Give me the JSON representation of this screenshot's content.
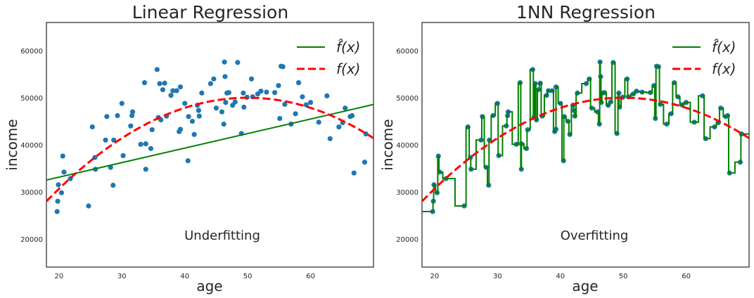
{
  "chart_data": [
    {
      "type": "scatter",
      "title": "Linear Regression",
      "xlabel": "age",
      "ylabel": "income",
      "xlim": [
        18,
        70
      ],
      "ylim": [
        14000,
        66000
      ],
      "xticks": [
        20,
        30,
        40,
        50,
        60
      ],
      "yticks": [
        20000,
        30000,
        40000,
        50000,
        60000
      ],
      "annotation": "Underfitting",
      "legend_placement": "top-right",
      "legend": [
        {
          "label": "f̂(x)",
          "color": "#008000",
          "style": "solid"
        },
        {
          "label": "f(x)",
          "color": "#ff0000",
          "style": "dashed"
        }
      ],
      "fit": {
        "kind": "linear",
        "intercept": 32500,
        "slope": 309
      },
      "true_function": {
        "kind": "quadratic",
        "peak_x": 50,
        "peak_y": 50000,
        "curvature": -21.5
      },
      "grid": false
    },
    {
      "type": "scatter",
      "title": "1NN Regression",
      "xlabel": "age",
      "ylabel": "income",
      "xlim": [
        18,
        70
      ],
      "ylim": [
        14000,
        66000
      ],
      "xticks": [
        20,
        30,
        40,
        50,
        60
      ],
      "yticks": [
        20000,
        30000,
        40000,
        50000,
        60000
      ],
      "annotation": "Overfitting",
      "legend_placement": "top-right",
      "legend": [
        {
          "label": "f̂(x)",
          "color": "#008000",
          "style": "solid"
        },
        {
          "label": "f(x)",
          "color": "#ff0000",
          "style": "dashed"
        }
      ],
      "fit": {
        "kind": "nearest-neighbor-step"
      },
      "true_function": {
        "kind": "quadratic",
        "peak_x": 50,
        "peak_y": 50000,
        "curvature": -21.5
      },
      "grid": false
    }
  ],
  "points": [
    {
      "x": 19.7,
      "y": 25800
    },
    {
      "x": 19.8,
      "y": 28000
    },
    {
      "x": 19.9,
      "y": 31500
    },
    {
      "x": 20.4,
      "y": 29800
    },
    {
      "x": 20.6,
      "y": 37600
    },
    {
      "x": 20.8,
      "y": 34200
    },
    {
      "x": 21.8,
      "y": 32800
    },
    {
      "x": 24.7,
      "y": 27000
    },
    {
      "x": 25.3,
      "y": 43800
    },
    {
      "x": 25.7,
      "y": 37300
    },
    {
      "x": 25.8,
      "y": 34800
    },
    {
      "x": 27.4,
      "y": 41000
    },
    {
      "x": 27.6,
      "y": 46000
    },
    {
      "x": 28.2,
      "y": 35200
    },
    {
      "x": 28.6,
      "y": 31400
    },
    {
      "x": 28.7,
      "y": 41000
    },
    {
      "x": 29.3,
      "y": 46200
    },
    {
      "x": 30.0,
      "y": 48800
    },
    {
      "x": 30.2,
      "y": 37700
    },
    {
      "x": 31.4,
      "y": 44000
    },
    {
      "x": 31.6,
      "y": 46200
    },
    {
      "x": 31.7,
      "y": 47000
    },
    {
      "x": 33.0,
      "y": 40100
    },
    {
      "x": 33.6,
      "y": 53200
    },
    {
      "x": 33.8,
      "y": 34800
    },
    {
      "x": 33.8,
      "y": 40200
    },
    {
      "x": 34.6,
      "y": 39200
    },
    {
      "x": 34.8,
      "y": 43200
    },
    {
      "x": 35.6,
      "y": 56000
    },
    {
      "x": 35.8,
      "y": 45800
    },
    {
      "x": 36.0,
      "y": 53000
    },
    {
      "x": 36.2,
      "y": 45300
    },
    {
      "x": 36.5,
      "y": 51700
    },
    {
      "x": 36.8,
      "y": 53100
    },
    {
      "x": 37.1,
      "y": 46100
    },
    {
      "x": 37.8,
      "y": 50500
    },
    {
      "x": 38.1,
      "y": 51500
    },
    {
      "x": 38.7,
      "y": 51500
    },
    {
      "x": 39.1,
      "y": 42800
    },
    {
      "x": 39.3,
      "y": 43300
    },
    {
      "x": 39.3,
      "y": 52300
    },
    {
      "x": 40.0,
      "y": 48800
    },
    {
      "x": 40.5,
      "y": 36600
    },
    {
      "x": 40.6,
      "y": 46000
    },
    {
      "x": 41.2,
      "y": 45000
    },
    {
      "x": 41.5,
      "y": 42200
    },
    {
      "x": 42.0,
      "y": 48400
    },
    {
      "x": 42.2,
      "y": 47300
    },
    {
      "x": 42.3,
      "y": 46100
    },
    {
      "x": 42.7,
      "y": 51000
    },
    {
      "x": 44.1,
      "y": 53000
    },
    {
      "x": 44.6,
      "y": 54000
    },
    {
      "x": 45.0,
      "y": 47800
    },
    {
      "x": 45.9,
      "y": 47000
    },
    {
      "x": 46.2,
      "y": 44400
    },
    {
      "x": 46.3,
      "y": 57600
    },
    {
      "x": 46.4,
      "y": 54500
    },
    {
      "x": 46.5,
      "y": 49000
    },
    {
      "x": 46.7,
      "y": 51000
    },
    {
      "x": 47.0,
      "y": 51100
    },
    {
      "x": 47.6,
      "y": 48400
    },
    {
      "x": 48.0,
      "y": 49100
    },
    {
      "x": 48.4,
      "y": 57500
    },
    {
      "x": 49.0,
      "y": 42400
    },
    {
      "x": 49.3,
      "y": 51000
    },
    {
      "x": 49.4,
      "y": 48000
    },
    {
      "x": 49.9,
      "y": 50100
    },
    {
      "x": 50.6,
      "y": 54000
    },
    {
      "x": 50.8,
      "y": 50200
    },
    {
      "x": 51.6,
      "y": 50800
    },
    {
      "x": 52.1,
      "y": 51400
    },
    {
      "x": 53.0,
      "y": 51200
    },
    {
      "x": 54.3,
      "y": 51100
    },
    {
      "x": 54.9,
      "y": 52600
    },
    {
      "x": 55.1,
      "y": 45600
    },
    {
      "x": 55.3,
      "y": 56700
    },
    {
      "x": 55.6,
      "y": 56600
    },
    {
      "x": 55.9,
      "y": 48600
    },
    {
      "x": 56.9,
      "y": 44400
    },
    {
      "x": 57.6,
      "y": 46600
    },
    {
      "x": 58.1,
      "y": 53200
    },
    {
      "x": 58.7,
      "y": 50200
    },
    {
      "x": 59.3,
      "y": 48500
    },
    {
      "x": 60.0,
      "y": 49000
    },
    {
      "x": 61.3,
      "y": 44800
    },
    {
      "x": 62.6,
      "y": 50400
    },
    {
      "x": 63.1,
      "y": 41300
    },
    {
      "x": 64.5,
      "y": 43800
    },
    {
      "x": 65.1,
      "y": 44700
    },
    {
      "x": 65.5,
      "y": 47800
    },
    {
      "x": 66.3,
      "y": 46000
    },
    {
      "x": 66.6,
      "y": 46200
    },
    {
      "x": 66.9,
      "y": 34000
    },
    {
      "x": 68.6,
      "y": 36300
    },
    {
      "x": 68.8,
      "y": 42300
    }
  ],
  "colors": {
    "points": "#1f77b4",
    "fit": "#008000",
    "truth": "#ff0000",
    "text": "#262626",
    "axes": "#262626"
  }
}
